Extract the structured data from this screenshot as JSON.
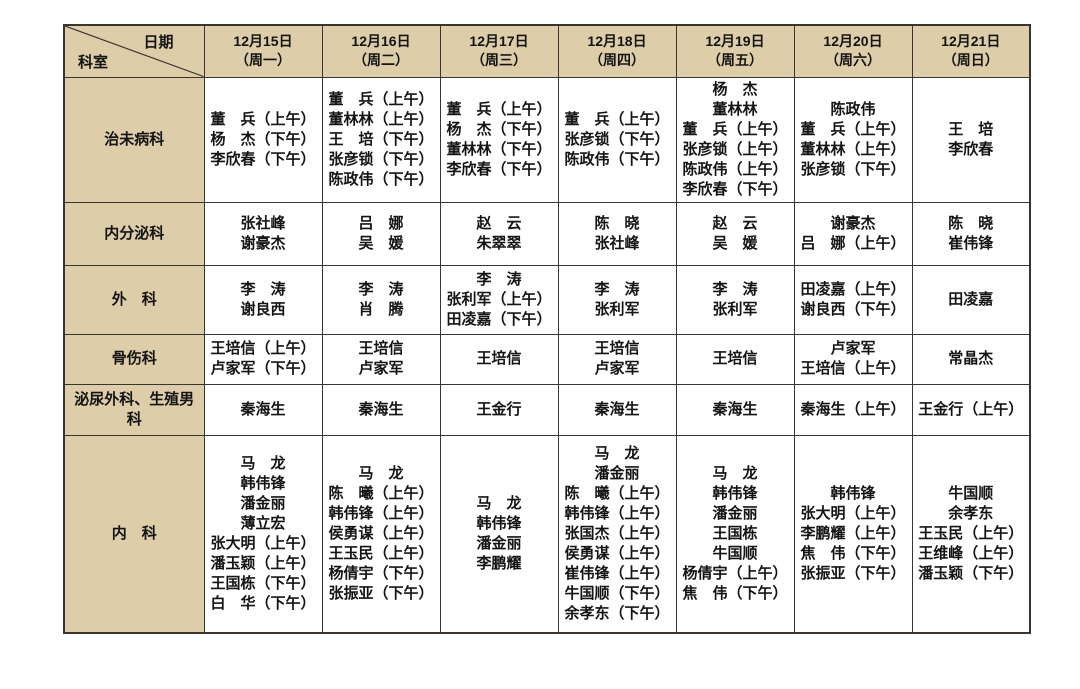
{
  "colors": {
    "header_bg": "#ddcda9",
    "border": "#3a3430",
    "text": "#141414",
    "cell_bg": "#ffffff",
    "page_bg": "#ffffff"
  },
  "table": {
    "corner": {
      "date_label": "日期",
      "dept_label": "科室"
    },
    "columns": [
      {
        "date": "12月15日",
        "weekday": "（周一）"
      },
      {
        "date": "12月16日",
        "weekday": "（周二）"
      },
      {
        "date": "12月17日",
        "weekday": "（周三）"
      },
      {
        "date": "12月18日",
        "weekday": "（周四）"
      },
      {
        "date": "12月19日",
        "weekday": "（周五）"
      },
      {
        "date": "12月20日",
        "weekday": "（周六）"
      },
      {
        "date": "12月21日",
        "weekday": "（周日）"
      }
    ],
    "rows": [
      {
        "department": "治未病科",
        "cells": [
          [
            "董　兵（上午）",
            "杨　杰（下午）",
            "李欣春（下午）"
          ],
          [
            "董　兵（上午）",
            "董林林（上午）",
            "王　培（下午）",
            "张彦锁（下午）",
            "陈政伟（下午）"
          ],
          [
            "董　兵（上午）",
            "杨　杰（下午）",
            "董林林（下午）",
            "李欣春（下午）"
          ],
          [
            "董　兵（上午）",
            "张彦锁（下午）",
            "陈政伟（下午）"
          ],
          [
            "杨　杰",
            "董林林",
            "董　兵（上午）",
            "张彦锁（上午）",
            "陈政伟（上午）",
            "李欣春（下午）"
          ],
          [
            "陈政伟",
            "董　兵（上午）",
            "董林林（上午）",
            "张彦锁（下午）"
          ],
          [
            "王　培",
            "李欣春"
          ]
        ]
      },
      {
        "department": "内分泌科",
        "cells": [
          [
            "张社峰",
            "谢豪杰"
          ],
          [
            "吕　娜",
            "吴　媛"
          ],
          [
            "赵　云",
            "朱翠翠"
          ],
          [
            "陈　晓",
            "张社峰"
          ],
          [
            "赵　云",
            "吴　媛"
          ],
          [
            "谢豪杰",
            "吕　娜（上午）"
          ],
          [
            "陈　晓",
            "崔伟锋"
          ]
        ]
      },
      {
        "department": "外　科",
        "cells": [
          [
            "李　涛",
            "谢良西"
          ],
          [
            "李　涛",
            "肖　腾"
          ],
          [
            "李　涛",
            "张利军（上午）",
            "田凌嘉（下午）"
          ],
          [
            "李　涛",
            "张利军"
          ],
          [
            "李　涛",
            "张利军"
          ],
          [
            "田凌嘉（上午）",
            "谢良西（下午）"
          ],
          [
            "田凌嘉"
          ]
        ]
      },
      {
        "department": "骨伤科",
        "cells": [
          [
            "王培信（上午）",
            "卢家军（下午）"
          ],
          [
            "王培信",
            "卢家军"
          ],
          [
            "王培信"
          ],
          [
            "王培信",
            "卢家军"
          ],
          [
            "王培信"
          ],
          [
            "卢家军",
            "王培信（上午）"
          ],
          [
            "常晶杰"
          ]
        ]
      },
      {
        "department": "泌尿外科、生殖男科",
        "cells": [
          [
            "秦海生"
          ],
          [
            "秦海生"
          ],
          [
            "王金行"
          ],
          [
            "秦海生"
          ],
          [
            "秦海生"
          ],
          [
            "秦海生（上午）"
          ],
          [
            "王金行（上午）"
          ]
        ]
      },
      {
        "department": "内　科",
        "cells": [
          [
            "马　龙",
            "韩伟锋",
            "潘金丽",
            "薄立宏",
            "张大明（上午）",
            "潘玉颖（上午）",
            "王国栋（下午）",
            "白　华（下午）"
          ],
          [
            "马　龙",
            "陈　曦（上午）",
            "韩伟锋（上午）",
            "侯勇谋（上午）",
            "王玉民（上午）",
            "杨倩宇（下午）",
            "张振亚（下午）"
          ],
          [
            "马　龙",
            "韩伟锋",
            "潘金丽",
            "李鹏耀"
          ],
          [
            "马　龙",
            "潘金丽",
            "陈　曦（上午）",
            "韩伟锋（上午）",
            "张国杰（上午）",
            "侯勇谋（上午）",
            "崔伟锋（上午）",
            "牛国顺（下午）",
            "余孝东（下午）"
          ],
          [
            "马　龙",
            "韩伟锋",
            "潘金丽",
            "王国栋",
            "牛国顺",
            "杨倩宇（上午）",
            "焦　伟（下午）"
          ],
          [
            "韩伟锋",
            "张大明（上午）",
            "李鹏耀（上午）",
            "焦　伟（下午）",
            "张振亚（下午）"
          ],
          [
            "牛国顺",
            "余孝东",
            "王玉民（上午）",
            "王维峰（上午）",
            "潘玉颖（下午）"
          ]
        ]
      }
    ]
  }
}
